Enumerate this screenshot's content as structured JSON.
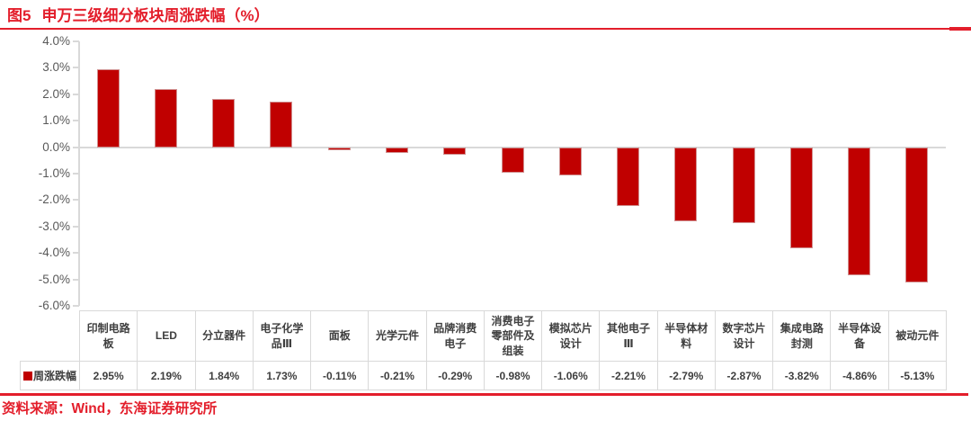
{
  "figure": {
    "number": "图5",
    "title": "申万三级细分板块周涨跌幅（%）"
  },
  "source_note": "资料来源：Wind，东海证券研究所",
  "legend": {
    "series_label": "周涨跌幅",
    "swatch_icon": "red-square-icon"
  },
  "colors": {
    "accent_red": "#E31E2B",
    "bar_red": "#C00000",
    "grid_gray": "#D9D9D9",
    "axis_text_gray": "#595959",
    "table_text_gray": "#3F3F3F"
  },
  "chart_data": {
    "type": "bar",
    "title": "申万三级细分板块周涨跌幅（%）",
    "series_name": "周涨跌幅",
    "categories": [
      "印制电路板",
      "LED",
      "分立器件",
      "电子化学品Ⅲ",
      "面板",
      "光学元件",
      "品牌消费电子",
      "消费电子零部件及组装",
      "模拟芯片设计",
      "其他电子Ⅲ",
      "半导体材料",
      "数字芯片设计",
      "集成电路封测",
      "半导体设备",
      "被动元件"
    ],
    "values": [
      2.95,
      2.19,
      1.84,
      1.73,
      -0.11,
      -0.21,
      -0.29,
      -0.98,
      -1.06,
      -2.21,
      -2.79,
      -2.87,
      -3.82,
      -4.86,
      -5.13
    ],
    "value_labels": [
      "2.95%",
      "2.19%",
      "1.84%",
      "1.73%",
      "-0.11%",
      "-0.21%",
      "-0.29%",
      "-0.98%",
      "-1.06%",
      "-2.21%",
      "-2.79%",
      "-2.87%",
      "-3.82%",
      "-4.86%",
      "-5.13%"
    ],
    "ylim": [
      -6.0,
      4.0
    ],
    "ytick_step": 1.0,
    "yticks": [
      "4.0%",
      "3.0%",
      "2.0%",
      "1.0%",
      "0.0%",
      "-1.0%",
      "-2.0%",
      "-3.0%",
      "-4.0%",
      "-5.0%",
      "-6.0%"
    ],
    "grid": "zero-baseline-only",
    "legend_position": "bottom-table-left",
    "bar_color": "#C00000"
  }
}
